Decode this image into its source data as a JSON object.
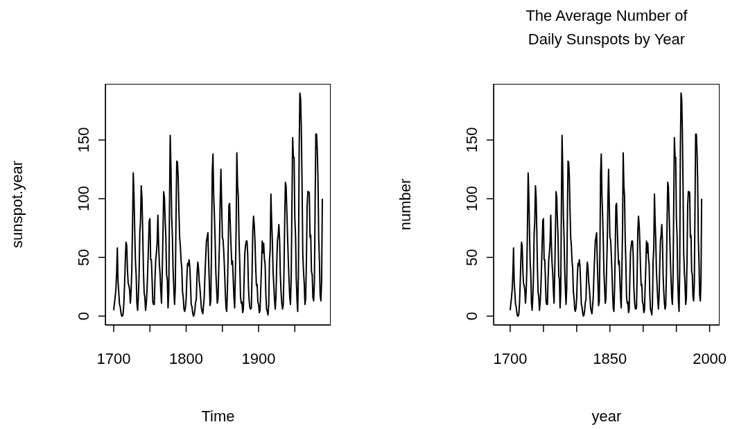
{
  "chart_data": [
    {
      "type": "line",
      "xlabel": "Time",
      "ylabel": "sunspot.year",
      "color": "#000000",
      "x": [
        1700,
        1701,
        1702,
        1703,
        1704,
        1705,
        1706,
        1707,
        1708,
        1709,
        1710,
        1711,
        1712,
        1713,
        1714,
        1715,
        1716,
        1717,
        1718,
        1719,
        1720,
        1721,
        1722,
        1723,
        1724,
        1725,
        1726,
        1727,
        1728,
        1729,
        1730,
        1731,
        1732,
        1733,
        1734,
        1735,
        1736,
        1737,
        1738,
        1739,
        1740,
        1741,
        1742,
        1743,
        1744,
        1745,
        1746,
        1747,
        1748,
        1749,
        1750,
        1751,
        1752,
        1753,
        1754,
        1755,
        1756,
        1757,
        1758,
        1759,
        1760,
        1761,
        1762,
        1763,
        1764,
        1765,
        1766,
        1767,
        1768,
        1769,
        1770,
        1771,
        1772,
        1773,
        1774,
        1775,
        1776,
        1777,
        1778,
        1779,
        1780,
        1781,
        1782,
        1783,
        1784,
        1785,
        1786,
        1787,
        1788,
        1789,
        1790,
        1791,
        1792,
        1793,
        1794,
        1795,
        1796,
        1797,
        1798,
        1799,
        1800,
        1801,
        1802,
        1803,
        1804,
        1805,
        1806,
        1807,
        1808,
        1809,
        1810,
        1811,
        1812,
        1813,
        1814,
        1815,
        1816,
        1817,
        1818,
        1819,
        1820,
        1821,
        1822,
        1823,
        1824,
        1825,
        1826,
        1827,
        1828,
        1829,
        1830,
        1831,
        1832,
        1833,
        1834,
        1835,
        1836,
        1837,
        1838,
        1839,
        1840,
        1841,
        1842,
        1843,
        1844,
        1845,
        1846,
        1847,
        1848,
        1849,
        1850,
        1851,
        1852,
        1853,
        1854,
        1855,
        1856,
        1857,
        1858,
        1859,
        1860,
        1861,
        1862,
        1863,
        1864,
        1865,
        1866,
        1867,
        1868,
        1869,
        1870,
        1871,
        1872,
        1873,
        1874,
        1875,
        1876,
        1877,
        1878,
        1879,
        1880,
        1881,
        1882,
        1883,
        1884,
        1885,
        1886,
        1887,
        1888,
        1889,
        1890,
        1891,
        1892,
        1893,
        1894,
        1895,
        1896,
        1897,
        1898,
        1899,
        1900,
        1901,
        1902,
        1903,
        1904,
        1905,
        1906,
        1907,
        1908,
        1909,
        1910,
        1911,
        1912,
        1913,
        1914,
        1915,
        1916,
        1917,
        1918,
        1919,
        1920,
        1921,
        1922,
        1923,
        1924,
        1925,
        1926,
        1927,
        1928,
        1929,
        1930,
        1931,
        1932,
        1933,
        1934,
        1935,
        1936,
        1937,
        1938,
        1939,
        1940,
        1941,
        1942,
        1943,
        1944,
        1945,
        1946,
        1947,
        1948,
        1949,
        1950,
        1951,
        1952,
        1953,
        1954,
        1955,
        1956,
        1957,
        1958,
        1959,
        1960,
        1961,
        1962,
        1963,
        1964,
        1965,
        1966,
        1967,
        1968,
        1969,
        1970,
        1971,
        1972,
        1973,
        1974,
        1975,
        1976,
        1977,
        1978,
        1979,
        1980,
        1981,
        1982,
        1983,
        1984,
        1985,
        1986,
        1987,
        1988
      ],
      "values": [
        5,
        11,
        16,
        23,
        36,
        58,
        29,
        20,
        10,
        8,
        3,
        0,
        0,
        2,
        11,
        27,
        47,
        63,
        60,
        39,
        28,
        26,
        22,
        11,
        21,
        40,
        78,
        122,
        103,
        73,
        47,
        35,
        11,
        5,
        16,
        34,
        70,
        81,
        111,
        101,
        73,
        40,
        20,
        16,
        5,
        11,
        22,
        40,
        60,
        81,
        83,
        48,
        48,
        31,
        12,
        10,
        10,
        32,
        48,
        54,
        63,
        86,
        61,
        45,
        36,
        21,
        11,
        38,
        70,
        106,
        101,
        82,
        67,
        35,
        31,
        7,
        20,
        93,
        154,
        126,
        85,
        68,
        39,
        23,
        10,
        24,
        83,
        132,
        131,
        118,
        90,
        67,
        60,
        47,
        41,
        21,
        16,
        6,
        4,
        7,
        15,
        34,
        45,
        43,
        48,
        42,
        28,
        10,
        8,
        3,
        0,
        1,
        5,
        12,
        14,
        35,
        46,
        41,
        30,
        24,
        16,
        7,
        4,
        2,
        9,
        17,
        36,
        50,
        64,
        67,
        71,
        48,
        28,
        9,
        13,
        57,
        122,
        138,
        103,
        86,
        65,
        37,
        24,
        11,
        15,
        40,
        62,
        99,
        125,
        96,
        67,
        65,
        54,
        39,
        21,
        7,
        4,
        23,
        55,
        94,
        96,
        77,
        59,
        44,
        47,
        31,
        16,
        7,
        38,
        74,
        139,
        111,
        102,
        66,
        45,
        17,
        11,
        12,
        3,
        6,
        32,
        54,
        60,
        64,
        64,
        52,
        25,
        13,
        7,
        6,
        7,
        36,
        73,
        85,
        78,
        64,
        42,
        26,
        27,
        12,
        10,
        3,
        5,
        24,
        42,
        64,
        54,
        62,
        49,
        44,
        19,
        6,
        4,
        1,
        10,
        47,
        57,
        104,
        81,
        64,
        38,
        26,
        14,
        6,
        17,
        44,
        64,
        69,
        78,
        65,
        36,
        21,
        11,
        6,
        9,
        36,
        80,
        114,
        110,
        89,
        68,
        48,
        31,
        16,
        10,
        33,
        93,
        152,
        136,
        135,
        84,
        69,
        32,
        14,
        4,
        38,
        142,
        190,
        185,
        159,
        112,
        54,
        38,
        28,
        10,
        15,
        47,
        94,
        106,
        106,
        105,
        67,
        69,
        38,
        35,
        16,
        13,
        28,
        93,
        155,
        155,
        141,
        116,
        67,
        46,
        18,
        13,
        29,
        100
      ],
      "xlim": [
        1688.5,
        1999.5
      ],
      "xticks": [
        1700,
        {
          "value": 1750,
          "label": null
        },
        1800,
        {
          "value": 1850,
          "label": null
        },
        1900,
        {
          "value": 1950,
          "label": null
        }
      ],
      "ylim": [
        -7.6,
        197.8
      ],
      "yticks": [
        0,
        50,
        100,
        150
      ]
    },
    {
      "type": "line",
      "title": "The Average Number of\nDaily Sunspots by Year",
      "xlabel": "year",
      "ylabel": "number",
      "color": "#000000",
      "x": [
        1700,
        1701,
        1702,
        1703,
        1704,
        1705,
        1706,
        1707,
        1708,
        1709,
        1710,
        1711,
        1712,
        1713,
        1714,
        1715,
        1716,
        1717,
        1718,
        1719,
        1720,
        1721,
        1722,
        1723,
        1724,
        1725,
        1726,
        1727,
        1728,
        1729,
        1730,
        1731,
        1732,
        1733,
        1734,
        1735,
        1736,
        1737,
        1738,
        1739,
        1740,
        1741,
        1742,
        1743,
        1744,
        1745,
        1746,
        1747,
        1748,
        1749,
        1750,
        1751,
        1752,
        1753,
        1754,
        1755,
        1756,
        1757,
        1758,
        1759,
        1760,
        1761,
        1762,
        1763,
        1764,
        1765,
        1766,
        1767,
        1768,
        1769,
        1770,
        1771,
        1772,
        1773,
        1774,
        1775,
        1776,
        1777,
        1778,
        1779,
        1780,
        1781,
        1782,
        1783,
        1784,
        1785,
        1786,
        1787,
        1788,
        1789,
        1790,
        1791,
        1792,
        1793,
        1794,
        1795,
        1796,
        1797,
        1798,
        1799,
        1800,
        1801,
        1802,
        1803,
        1804,
        1805,
        1806,
        1807,
        1808,
        1809,
        1810,
        1811,
        1812,
        1813,
        1814,
        1815,
        1816,
        1817,
        1818,
        1819,
        1820,
        1821,
        1822,
        1823,
        1824,
        1825,
        1826,
        1827,
        1828,
        1829,
        1830,
        1831,
        1832,
        1833,
        1834,
        1835,
        1836,
        1837,
        1838,
        1839,
        1840,
        1841,
        1842,
        1843,
        1844,
        1845,
        1846,
        1847,
        1848,
        1849,
        1850,
        1851,
        1852,
        1853,
        1854,
        1855,
        1856,
        1857,
        1858,
        1859,
        1860,
        1861,
        1862,
        1863,
        1864,
        1865,
        1866,
        1867,
        1868,
        1869,
        1870,
        1871,
        1872,
        1873,
        1874,
        1875,
        1876,
        1877,
        1878,
        1879,
        1880,
        1881,
        1882,
        1883,
        1884,
        1885,
        1886,
        1887,
        1888,
        1889,
        1890,
        1891,
        1892,
        1893,
        1894,
        1895,
        1896,
        1897,
        1898,
        1899,
        1900,
        1901,
        1902,
        1903,
        1904,
        1905,
        1906,
        1907,
        1908,
        1909,
        1910,
        1911,
        1912,
        1913,
        1914,
        1915,
        1916,
        1917,
        1918,
        1919,
        1920,
        1921,
        1922,
        1923,
        1924,
        1925,
        1926,
        1927,
        1928,
        1929,
        1930,
        1931,
        1932,
        1933,
        1934,
        1935,
        1936,
        1937,
        1938,
        1939,
        1940,
        1941,
        1942,
        1943,
        1944,
        1945,
        1946,
        1947,
        1948,
        1949,
        1950,
        1951,
        1952,
        1953,
        1954,
        1955,
        1956,
        1957,
        1958,
        1959,
        1960,
        1961,
        1962,
        1963,
        1964,
        1965,
        1966,
        1967,
        1968,
        1969,
        1970,
        1971,
        1972,
        1973,
        1974,
        1975,
        1976,
        1977,
        1978,
        1979,
        1980,
        1981,
        1982,
        1983,
        1984,
        1985,
        1986,
        1987,
        1988
      ],
      "values": [
        5,
        11,
        16,
        23,
        36,
        58,
        29,
        20,
        10,
        8,
        3,
        0,
        0,
        2,
        11,
        27,
        47,
        63,
        60,
        39,
        28,
        26,
        22,
        11,
        21,
        40,
        78,
        122,
        103,
        73,
        47,
        35,
        11,
        5,
        16,
        34,
        70,
        81,
        111,
        101,
        73,
        40,
        20,
        16,
        5,
        11,
        22,
        40,
        60,
        81,
        83,
        48,
        48,
        31,
        12,
        10,
        10,
        32,
        48,
        54,
        63,
        86,
        61,
        45,
        36,
        21,
        11,
        38,
        70,
        106,
        101,
        82,
        67,
        35,
        31,
        7,
        20,
        93,
        154,
        126,
        85,
        68,
        39,
        23,
        10,
        24,
        83,
        132,
        131,
        118,
        90,
        67,
        60,
        47,
        41,
        21,
        16,
        6,
        4,
        7,
        15,
        34,
        45,
        43,
        48,
        42,
        28,
        10,
        8,
        3,
        0,
        1,
        5,
        12,
        14,
        35,
        46,
        41,
        30,
        24,
        16,
        7,
        4,
        2,
        9,
        17,
        36,
        50,
        64,
        67,
        71,
        48,
        28,
        9,
        13,
        57,
        122,
        138,
        103,
        86,
        65,
        37,
        24,
        11,
        15,
        40,
        62,
        99,
        125,
        96,
        67,
        65,
        54,
        39,
        21,
        7,
        4,
        23,
        55,
        94,
        96,
        77,
        59,
        44,
        47,
        31,
        16,
        7,
        38,
        74,
        139,
        111,
        102,
        66,
        45,
        17,
        11,
        12,
        3,
        6,
        32,
        54,
        60,
        64,
        64,
        52,
        25,
        13,
        7,
        6,
        7,
        36,
        73,
        85,
        78,
        64,
        42,
        26,
        27,
        12,
        10,
        3,
        5,
        24,
        42,
        64,
        54,
        62,
        49,
        44,
        19,
        6,
        4,
        1,
        10,
        47,
        57,
        104,
        81,
        64,
        38,
        26,
        14,
        6,
        17,
        44,
        64,
        69,
        78,
        65,
        36,
        21,
        11,
        6,
        9,
        36,
        80,
        114,
        110,
        89,
        68,
        48,
        31,
        16,
        10,
        33,
        93,
        152,
        136,
        135,
        84,
        69,
        32,
        14,
        4,
        38,
        142,
        190,
        185,
        159,
        112,
        54,
        38,
        28,
        10,
        15,
        47,
        94,
        106,
        106,
        105,
        67,
        69,
        38,
        35,
        16,
        13,
        28,
        93,
        155,
        155,
        141,
        116,
        67,
        46,
        18,
        13,
        29,
        100
      ],
      "xlim": [
        1675,
        2015
      ],
      "xticks": [
        1700,
        {
          "value": 1750,
          "label": null
        },
        {
          "value": 1800,
          "label": null
        },
        1850,
        {
          "value": 1900,
          "label": null
        },
        {
          "value": 1950,
          "label": null
        },
        2000
      ],
      "ylim": [
        -7.6,
        197.8
      ],
      "yticks": [
        0,
        50,
        100,
        150
      ]
    }
  ]
}
